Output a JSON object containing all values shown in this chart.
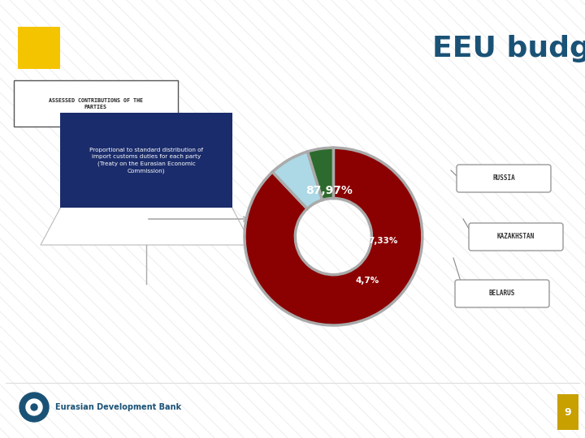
{
  "title": "EEU budget",
  "title_color": "#1a5276",
  "title_fontsize": 26,
  "slide_bg": "#ffffff",
  "stripe_color": "#d0d0d0",
  "yellow_box_color": "#f5c400",
  "box1_text": "ASSESSED CONTRIBUTIONS OF THE\nPARTIES",
  "box2_text": "Proportional to standard distribution of\nimport customs duties for each party\n(Treaty on the Eurasian Economic\nCommission)",
  "box2_color": "#1a2c6b",
  "box2_text_color": "#ffffff",
  "pie_values": [
    87.97,
    7.33,
    4.7
  ],
  "pie_labels": [
    "87,97%",
    "7,33%",
    "4,7%"
  ],
  "pie_colors": [
    "#8b0000",
    "#add8e6",
    "#2d6a2d"
  ],
  "pie_edge_color": "#aaaaaa",
  "legend_labels": [
    "RUSSIA",
    "KAZAKHSTAN",
    "BELARUS"
  ],
  "page_number": "9",
  "page_bg": "#c8a000",
  "edb_text": "Eurasian Development Bank"
}
